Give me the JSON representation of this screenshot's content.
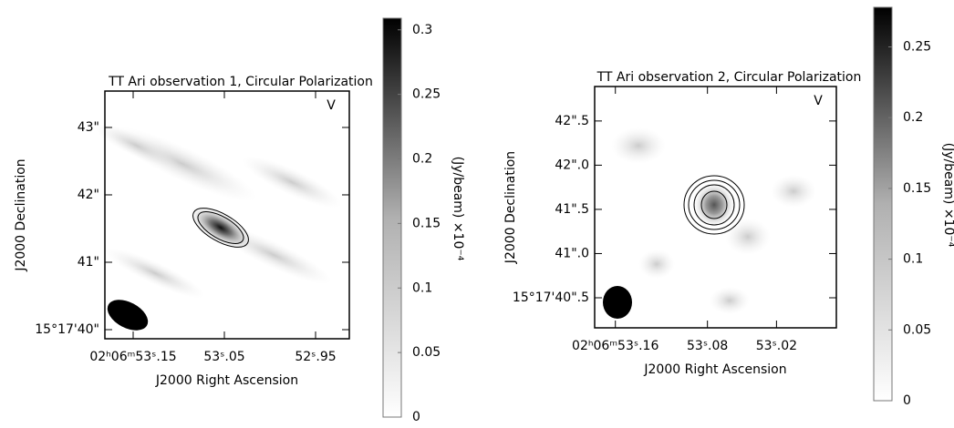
{
  "chart_data": [
    {
      "type": "image",
      "title": "TT Ari observation 1, Circular Polarization",
      "xlabel": "J2000 Right Ascension",
      "ylabel": "J2000 Declination",
      "stokes": "V",
      "xlim": [
        53.181,
        52.913
      ],
      "xticks": [
        {
          "value": 53.15,
          "label": "02ʰ06ᵐ53ˢ.15"
        },
        {
          "value": 53.05,
          "label": "53ˢ.05"
        },
        {
          "value": 52.95,
          "label": "52ˢ.95"
        }
      ],
      "ylim": [
        39.865,
        43.54
      ],
      "yticks": [
        {
          "value": 40,
          "label": "15°17'40\""
        },
        {
          "value": 41,
          "label": "41\""
        },
        {
          "value": 42,
          "label": "42\""
        },
        {
          "value": 43,
          "label": "43\""
        }
      ],
      "colorbar": {
        "label": "(Jy/beam)  ×10⁻⁴",
        "lim": [
          0,
          0.309
        ],
        "ticks": [
          0,
          0.05,
          0.1,
          0.15,
          0.2,
          0.25,
          0.3
        ]
      }
    },
    {
      "type": "image",
      "title": "TT Ari observation 2, Circular Polarization",
      "xlabel": "J2000 Right Ascension",
      "ylabel": "J2000 Declination",
      "stokes": "V",
      "xlim": [
        53.178,
        52.968
      ],
      "xticks": [
        {
          "value": 53.16,
          "label": "02ʰ06ᵐ53ˢ.16"
        },
        {
          "value": 53.08,
          "label": "53ˢ.08"
        },
        {
          "value": 53.02,
          "label": "53ˢ.02"
        }
      ],
      "ylim": [
        40.16,
        42.89
      ],
      "yticks": [
        {
          "value": 40.5,
          "label": "15°17'40\".5"
        },
        {
          "value": 41,
          "label": "41\".0"
        },
        {
          "value": 41.5,
          "label": "41\".5"
        },
        {
          "value": 42,
          "label": "42\".0"
        },
        {
          "value": 42.5,
          "label": "42\".5"
        }
      ],
      "colorbar": {
        "label": "(Jy/beam)  ×10⁻⁴",
        "lim": [
          0,
          0.278
        ],
        "ticks": [
          0,
          0.05,
          0.1,
          0.15,
          0.2,
          0.25
        ]
      }
    }
  ]
}
